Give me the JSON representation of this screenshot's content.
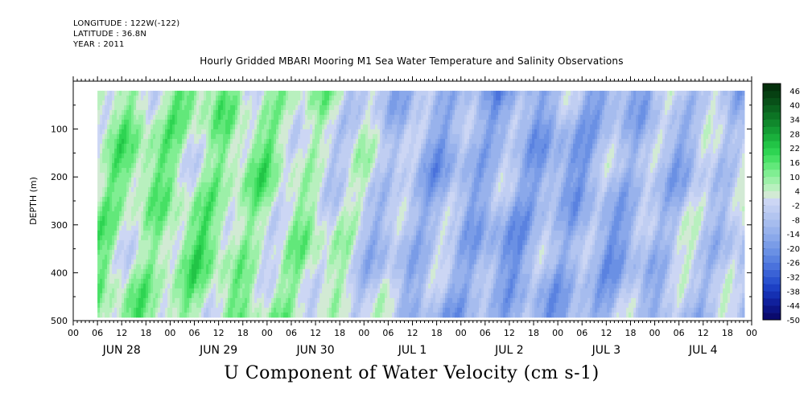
{
  "header": {
    "longitude": "LONGITUDE : 122W(-122)",
    "latitude": "LATITUDE : 36.8N",
    "year": "YEAR : 2011"
  },
  "chart_data": {
    "type": "heatmap",
    "title": "Hourly Gridded MBARI Mooring M1 Sea Water Temperature and Salinity Observations",
    "xlabel": "U Component of Water Velocity (cm s-1)",
    "ylabel": "DEPTH (m)",
    "ylim": [
      500,
      0
    ],
    "yticks": [
      100,
      200,
      300,
      400,
      500
    ],
    "xlim_hours": [
      0,
      168
    ],
    "x_hour_ticks": [
      "00",
      "06",
      "12",
      "18",
      "00",
      "06",
      "12",
      "18",
      "00",
      "06",
      "12",
      "18",
      "00",
      "06",
      "12",
      "18",
      "00",
      "06",
      "12",
      "18",
      "00",
      "06",
      "12",
      "18",
      "00",
      "06",
      "12",
      "18",
      "00"
    ],
    "x_day_labels": [
      "JUN 28",
      "JUN 29",
      "JUN 30",
      "JUL  1",
      "JUL  2",
      "JUL  3",
      "JUL  4"
    ],
    "colorbar": {
      "ticks": [
        "46",
        "40",
        "34",
        "28",
        "22",
        "16",
        "10",
        "4",
        "-2",
        "-8",
        "-14",
        "-20",
        "-26",
        "-32",
        "-38",
        "-44",
        "-50"
      ],
      "levels": [
        -50,
        -47,
        -44,
        -41,
        -38,
        -35,
        -32,
        -29,
        -26,
        -23,
        -20,
        -17,
        -14,
        -11,
        -8,
        -5,
        -2,
        1,
        4,
        7,
        10,
        13,
        16,
        19,
        22,
        25,
        28,
        31,
        34,
        37,
        40,
        43,
        46,
        49
      ],
      "colors": [
        "#0a0a6e",
        "#0c1485",
        "#10209c",
        "#1530b2",
        "#1d40c4",
        "#2a52cf",
        "#3a62d6",
        "#4a72dc",
        "#5a82e0",
        "#6a90e4",
        "#7a9ce7",
        "#8aa8ea",
        "#98b2ec",
        "#a6bcee",
        "#b3c5f0",
        "#c0cef2",
        "#ccd6f4",
        "#d2ead4",
        "#b8f0be",
        "#9cf0a8",
        "#80ee92",
        "#62e87a",
        "#46e064",
        "#2ed452",
        "#22c446",
        "#1ab03c",
        "#149c34",
        "#10882c",
        "#0c7424",
        "#0a621e",
        "#085018",
        "#064012",
        "#04300c"
      ]
    },
    "field_description": "U velocity field: alternating bands of positive (eastward, green) and negative (westward, blue) flow across the 7-day record, values mostly between -20 and +16 cm s-1",
    "series_mean_by_day": [
      {
        "day": "JUN 28",
        "mean_u": 8
      },
      {
        "day": "JUN 29",
        "mean_u": 9
      },
      {
        "day": "JUN 30",
        "mean_u": 4
      },
      {
        "day": "JUL  1",
        "mean_u": -9
      },
      {
        "day": "JUL  2",
        "mean_u": -13
      },
      {
        "day": "JUL  3",
        "mean_u": -12
      },
      {
        "day": "JUL  4",
        "mean_u": -5
      }
    ],
    "grid": false
  }
}
